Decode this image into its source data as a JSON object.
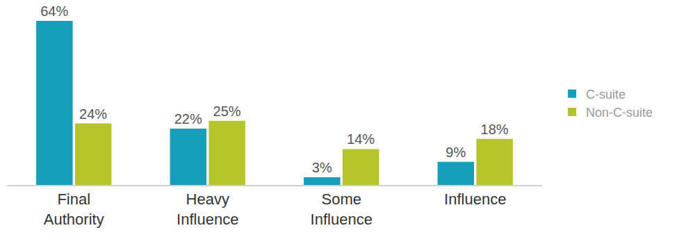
{
  "chart_data": {
    "type": "bar",
    "categories": [
      "Final Authority",
      "Heavy Influence",
      "Some Influence",
      "Influence"
    ],
    "series": [
      {
        "name": "C-suite",
        "color": "#169fba",
        "values": [
          64,
          22,
          3,
          9
        ],
        "value_labels": [
          "64%",
          "22%",
          "3%",
          "9%"
        ]
      },
      {
        "name": "Non-C-suite",
        "color": "#b5c42a",
        "values": [
          24,
          25,
          14,
          18
        ],
        "value_labels": [
          "24%",
          "25%",
          "14%",
          "18%"
        ]
      }
    ],
    "ylim": [
      0,
      64
    ],
    "grid": false,
    "legend": "right",
    "data_labels": true,
    "tick_labels": "x"
  }
}
